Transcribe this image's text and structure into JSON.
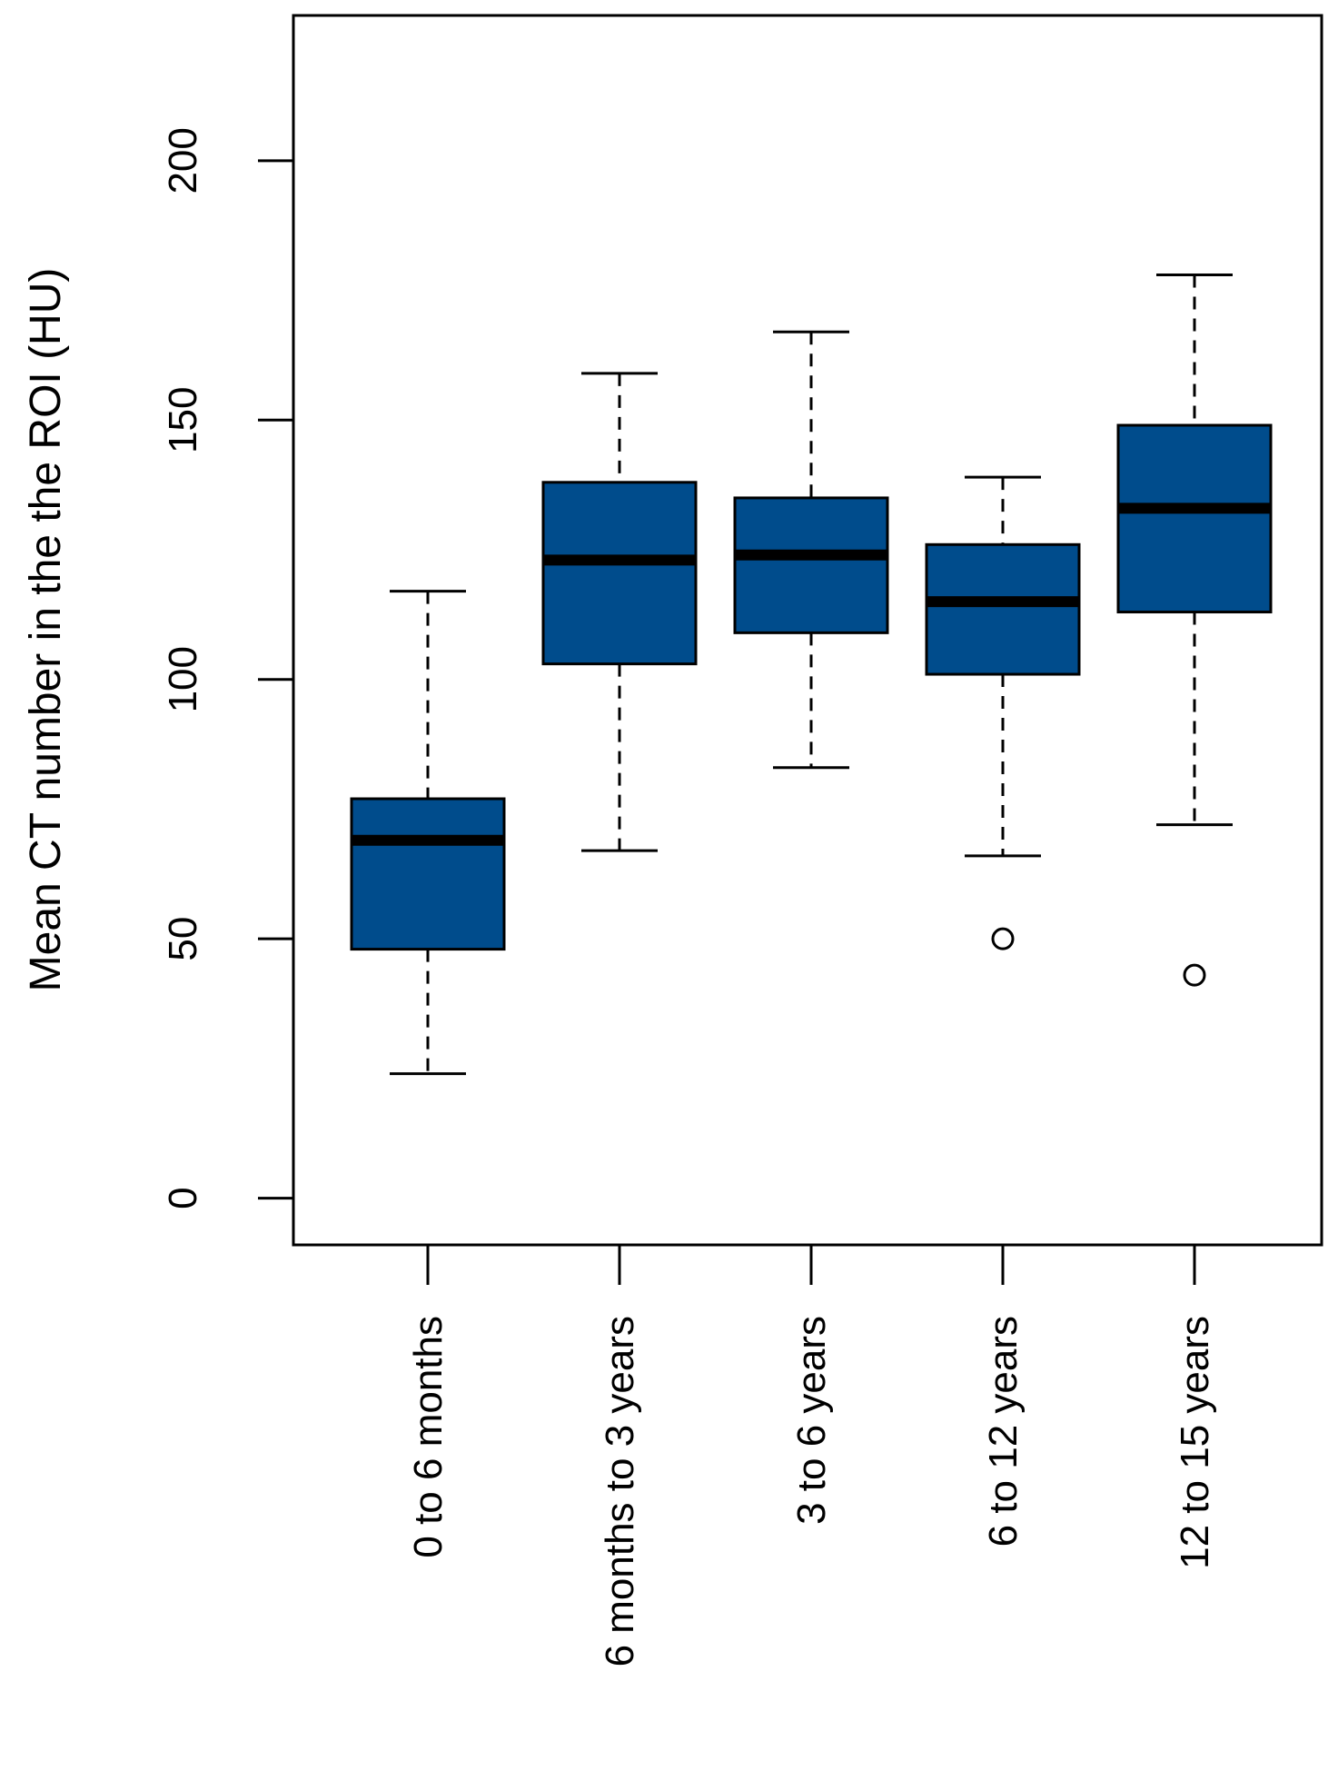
{
  "chart_data": {
    "type": "boxplot",
    "title": "",
    "xlabel": "",
    "ylabel": "Mean CT number in the the ROI (HU)",
    "ylim": [
      -9,
      228
    ],
    "yticks": [
      0,
      50,
      100,
      150,
      200
    ],
    "ytick_labels": [
      "0",
      "50",
      "100",
      "150",
      "200"
    ],
    "categories": [
      "0 to 6 months",
      "6 months to 3 years",
      "3 to 6 years",
      "6 to 12 years",
      "12 to 15 years"
    ],
    "boxes": [
      {
        "whisker_low": 24,
        "q1": 48,
        "median": 69,
        "q3": 77,
        "whisker_high": 117,
        "outliers": []
      },
      {
        "whisker_low": 67,
        "q1": 103,
        "median": 123,
        "q3": 138,
        "whisker_high": 159,
        "outliers": []
      },
      {
        "whisker_low": 83,
        "q1": 109,
        "median": 124,
        "q3": 135,
        "whisker_high": 167,
        "outliers": []
      },
      {
        "whisker_low": 66,
        "q1": 101,
        "median": 115,
        "q3": 126,
        "whisker_high": 139,
        "outliers": [
          50
        ]
      },
      {
        "whisker_low": 72,
        "q1": 113,
        "median": 133,
        "q3": 149,
        "whisker_high": 178,
        "outliers": [
          43
        ]
      }
    ],
    "box_color": "#004C8C",
    "grid": false,
    "legend": "none"
  }
}
